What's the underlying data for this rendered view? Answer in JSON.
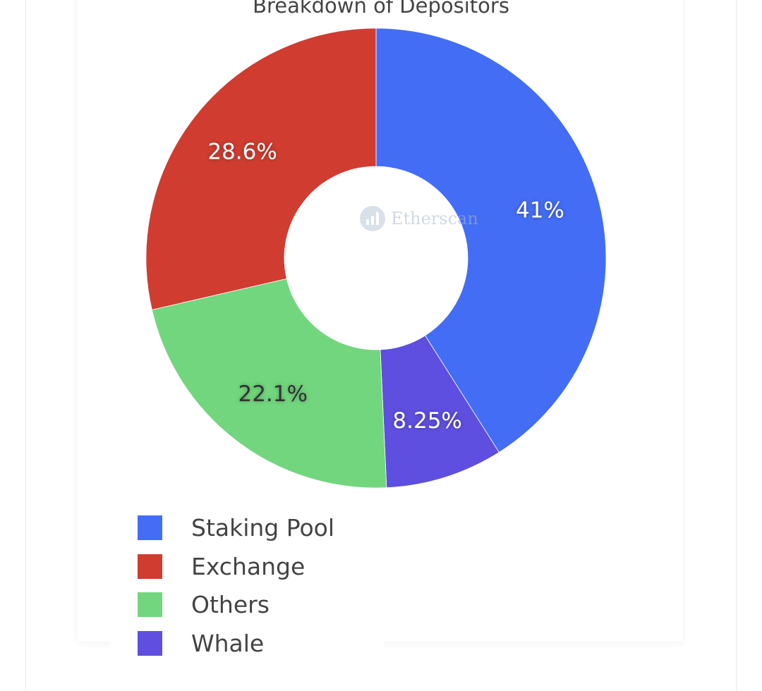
{
  "chart_data": {
    "type": "pie",
    "title": "Breakdown of Depositors",
    "hole": true,
    "slices": [
      {
        "label": "Staking Pool",
        "value": 41,
        "display": "41%",
        "color": "#436df5",
        "text_color": "#ffffff"
      },
      {
        "label": "Whale",
        "value": 8.25,
        "display": "8.25%",
        "color": "#5e4fe0",
        "text_color": "#ffffff"
      },
      {
        "label": "Others",
        "value": 22.1,
        "display": "22.1%",
        "color": "#72d67e",
        "text_color": "#333333"
      },
      {
        "label": "Exchange",
        "value": 28.6,
        "display": "28.6%",
        "color": "#d03c30",
        "text_color": "#ffffff"
      }
    ],
    "legend": {
      "placement": "bottom-left",
      "items": [
        {
          "label": "Staking Pool",
          "color": "#436df5"
        },
        {
          "label": "Exchange",
          "color": "#d03c30"
        },
        {
          "label": "Others",
          "color": "#72d67e"
        },
        {
          "label": "Whale",
          "color": "#5e4fe0"
        }
      ]
    },
    "watermark": "Etherscan",
    "watermark_icon": "etherscan-logo-icon"
  }
}
